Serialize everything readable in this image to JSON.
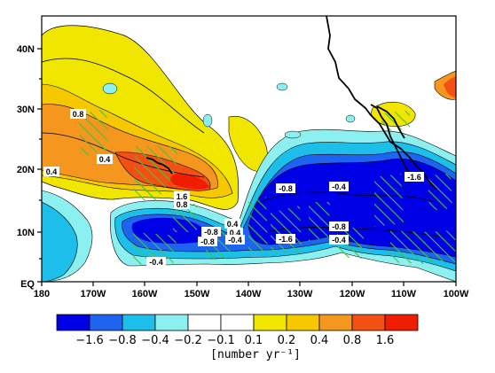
{
  "map": {
    "y_ticks": [
      "40N",
      "30N",
      "20N",
      "10N",
      "EQ"
    ],
    "x_ticks": [
      "180",
      "170W",
      "160W",
      "150W",
      "140W",
      "130W",
      "120W",
      "110W",
      "100W"
    ],
    "contour_labels": [
      "0.8",
      "0.4",
      "0.4",
      "1.6",
      "0.8",
      "0.4",
      "0.4",
      "-0.8",
      "-0.4",
      "-1.6",
      "-0.8",
      "-0.4",
      "-0.8",
      "-1.6",
      "-0.4",
      "-0.4",
      "-0.8"
    ],
    "features": [
      "coastline-north-america",
      "hatched-significance"
    ]
  },
  "colorbar": {
    "labels": [
      "−1.6",
      "−0.8",
      "−0.4",
      "−0.2",
      "−0.1",
      "0.1",
      "0.2",
      "0.4",
      "0.8",
      "1.6"
    ],
    "colors": [
      "#0000e6",
      "#1e64f0",
      "#1ebeeb",
      "#8cf0f0",
      "#ffffff",
      "#ffffff",
      "#f0e600",
      "#f5c800",
      "#f5961e",
      "#f55014",
      "#f01e00"
    ],
    "units": "[number yr⁻¹]"
  }
}
